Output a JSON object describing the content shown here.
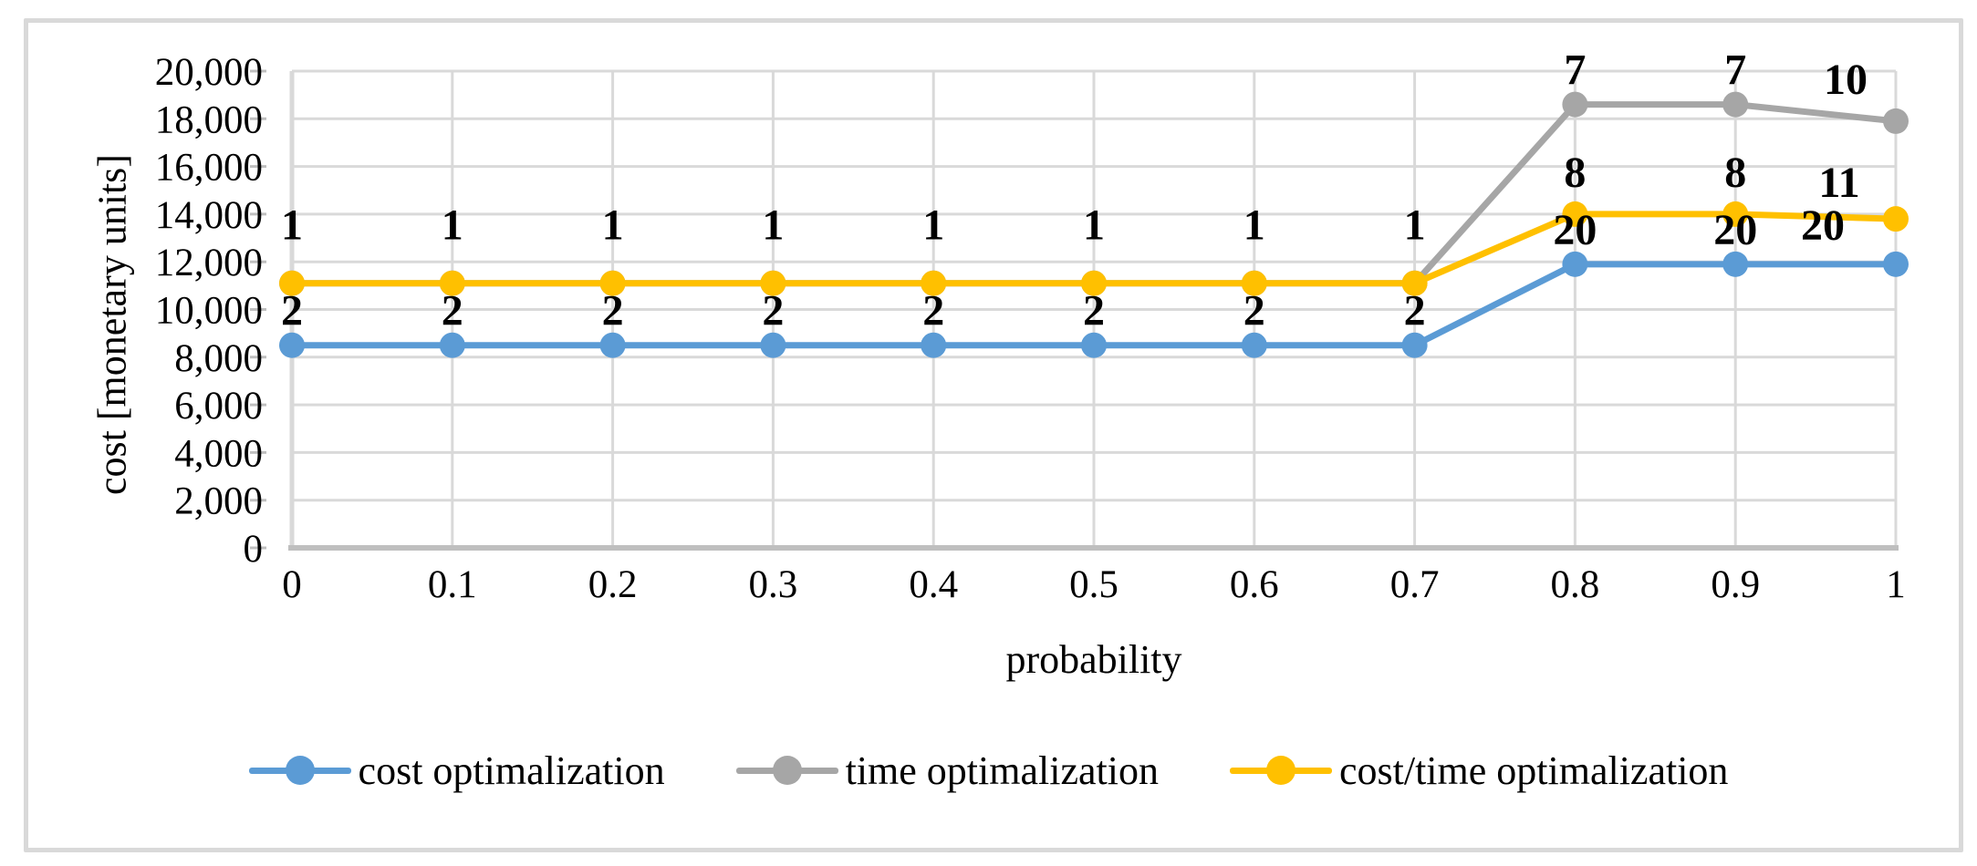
{
  "figure": {
    "background_color": "#ffffff",
    "border_color": "#d9d9d9"
  },
  "chart_data": {
    "type": "line",
    "title": "",
    "xlabel": "probability",
    "ylabel": "cost [monetary units]",
    "x": [
      0,
      0.1,
      0.2,
      0.3,
      0.4,
      0.5,
      0.6,
      0.7,
      0.8,
      0.9,
      1
    ],
    "x_tick_labels": [
      "0",
      "0.1",
      "0.2",
      "0.3",
      "0.4",
      "0.5",
      "0.6",
      "0.7",
      "0.8",
      "0.9",
      "1"
    ],
    "y_ticks": [
      0,
      2000,
      4000,
      6000,
      8000,
      10000,
      12000,
      14000,
      16000,
      18000,
      20000
    ],
    "y_tick_labels": [
      "0",
      "2,000",
      "4,000",
      "6,000",
      "8,000",
      "10,000",
      "12,000",
      "14,000",
      "16,000",
      "18,000",
      "20,000"
    ],
    "ylim": [
      0,
      20000
    ],
    "grid": true,
    "gridline_color": "#d9d9d9",
    "axis_line_color": "#bfbfbf",
    "legend_position": "bottom",
    "marker": "circle",
    "series": [
      {
        "name": "cost optimalization",
        "color": "#5B9BD5",
        "values": [
          8500,
          8500,
          8500,
          8500,
          8500,
          8500,
          8500,
          8500,
          11900,
          11900,
          11900
        ],
        "point_labels": [
          "2",
          "2",
          "2",
          "2",
          "2",
          "2",
          "2",
          "2",
          "20",
          "20",
          "20"
        ]
      },
      {
        "name": "time optimalization",
        "color": "#A6A6A6",
        "values": [
          11100,
          11100,
          11100,
          11100,
          11100,
          11100,
          11100,
          11100,
          18600,
          18600,
          17900
        ],
        "point_labels": [
          "",
          "",
          "",
          "",
          "",
          "",
          "",
          "",
          "7",
          "7",
          "10"
        ]
      },
      {
        "name": "cost/time optimalization",
        "color": "#FFC000",
        "values": [
          11100,
          11100,
          11100,
          11100,
          11100,
          11100,
          11100,
          11100,
          14000,
          14000,
          13800
        ],
        "point_labels": [
          "1",
          "1",
          "1",
          "1",
          "1",
          "1",
          "1",
          "1",
          "8",
          "8",
          "11"
        ]
      }
    ],
    "draw_order": [
      1,
      0,
      2
    ],
    "label_offsets": {
      "2-0": {
        "dx": 0,
        "dy": -26
      },
      "2-1": {
        "dx": 0,
        "dy": -26
      },
      "2-2": {
        "dx": 0,
        "dy": -26
      },
      "2-3": {
        "dx": 0,
        "dy": -26
      },
      "2-4": {
        "dx": 0,
        "dy": -26
      },
      "2-5": {
        "dx": 0,
        "dy": -26
      },
      "2-6": {
        "dx": 0,
        "dy": -26
      },
      "2-7": {
        "dx": 0,
        "dy": -26
      },
      "2-8": {
        "dx": 0,
        "dy": -8
      },
      "2-9": {
        "dx": 0,
        "dy": -8
      },
      "2-10": {
        "dx": -62,
        "dy": -2
      },
      "1-10": {
        "dx": -55,
        "dy": -8
      },
      "0-10": {
        "dx": -80,
        "dy": -5
      }
    }
  }
}
